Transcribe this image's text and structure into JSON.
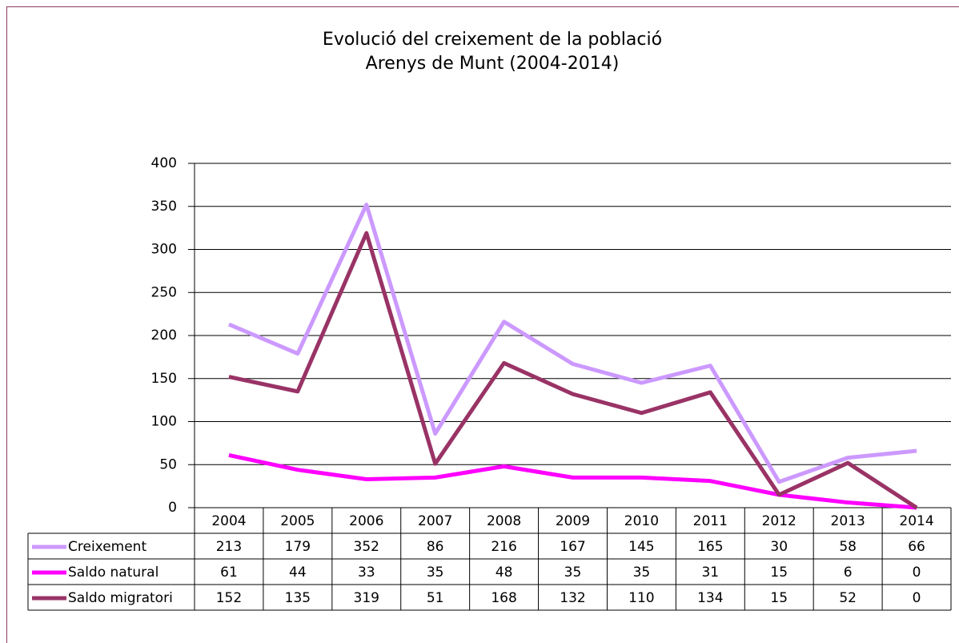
{
  "chart_data": {
    "type": "line",
    "title": [
      "Evolució del creixement de la població",
      "Arenys de Munt (2004-2014)"
    ],
    "categories": [
      "2004",
      "2005",
      "2006",
      "2007",
      "2008",
      "2009",
      "2010",
      "2011",
      "2012",
      "2013",
      "2014"
    ],
    "series": [
      {
        "name": "Creixement",
        "color": "#cc99ff",
        "values": [
          213,
          179,
          352,
          86,
          216,
          167,
          145,
          165,
          30,
          58,
          66
        ]
      },
      {
        "name": "Saldo natural",
        "color": "#ff00ff",
        "values": [
          61,
          44,
          33,
          35,
          48,
          35,
          35,
          31,
          15,
          6,
          0
        ]
      },
      {
        "name": "Saldo migratori",
        "color": "#993366",
        "values": [
          152,
          135,
          319,
          51,
          168,
          132,
          110,
          134,
          15,
          52,
          0
        ]
      }
    ],
    "ylim": [
      0,
      400
    ],
    "yticks": [
      0,
      50,
      100,
      150,
      200,
      250,
      300,
      350,
      400
    ],
    "grid": true
  }
}
